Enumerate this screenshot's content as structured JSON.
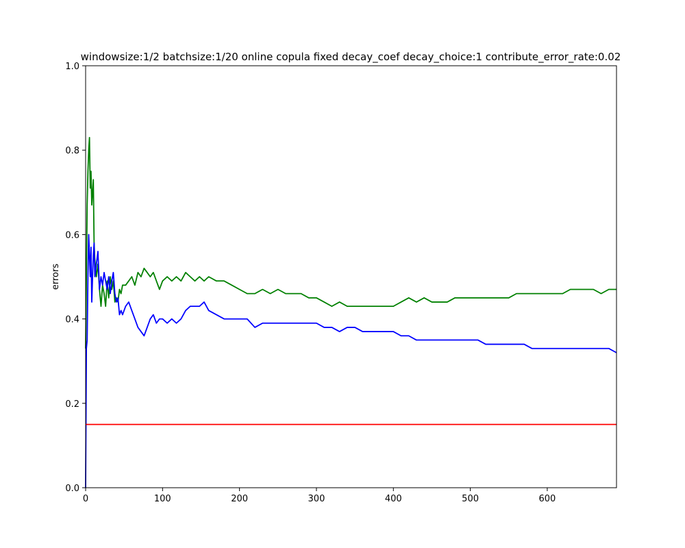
{
  "chart_data": {
    "type": "line",
    "title": "windowsize:1/2  batchsize:1/20 online copula  fixed decay_coef  decay_choice:1  contribute_error_rate:0.02",
    "xlabel": "",
    "ylabel": "errors",
    "xlim": [
      0,
      690
    ],
    "ylim": [
      0.0,
      1.0
    ],
    "x_ticks": [
      0,
      100,
      200,
      300,
      400,
      500,
      600
    ],
    "y_ticks": [
      0.0,
      0.2,
      0.4,
      0.6,
      0.8,
      1.0
    ],
    "x_tick_labels": [
      "0",
      "100",
      "200",
      "300",
      "400",
      "500",
      "600"
    ],
    "y_tick_labels": [
      "0.0",
      "0.2",
      "0.4",
      "0.6",
      "0.8",
      "1.0"
    ],
    "grid": false,
    "series": [
      {
        "color": "#008000",
        "points": [
          [
            0,
            0.33
          ],
          [
            1,
            0.5
          ],
          [
            2,
            0.67
          ],
          [
            3,
            0.75
          ],
          [
            4,
            0.8
          ],
          [
            5,
            0.83
          ],
          [
            6,
            0.71
          ],
          [
            7,
            0.75
          ],
          [
            8,
            0.67
          ],
          [
            9,
            0.7
          ],
          [
            10,
            0.73
          ],
          [
            11,
            0.58
          ],
          [
            12,
            0.54
          ],
          [
            14,
            0.5
          ],
          [
            16,
            0.53
          ],
          [
            18,
            0.47
          ],
          [
            20,
            0.43
          ],
          [
            22,
            0.48
          ],
          [
            24,
            0.46
          ],
          [
            26,
            0.43
          ],
          [
            28,
            0.49
          ],
          [
            30,
            0.45
          ],
          [
            32,
            0.5
          ],
          [
            34,
            0.47
          ],
          [
            36,
            0.49
          ],
          [
            38,
            0.44
          ],
          [
            40,
            0.45
          ],
          [
            42,
            0.44
          ],
          [
            44,
            0.47
          ],
          [
            46,
            0.46
          ],
          [
            48,
            0.48
          ],
          [
            52,
            0.48
          ],
          [
            56,
            0.49
          ],
          [
            60,
            0.5
          ],
          [
            64,
            0.48
          ],
          [
            68,
            0.51
          ],
          [
            72,
            0.5
          ],
          [
            76,
            0.52
          ],
          [
            80,
            0.51
          ],
          [
            84,
            0.5
          ],
          [
            88,
            0.51
          ],
          [
            92,
            0.49
          ],
          [
            96,
            0.47
          ],
          [
            100,
            0.49
          ],
          [
            106,
            0.5
          ],
          [
            112,
            0.49
          ],
          [
            118,
            0.5
          ],
          [
            124,
            0.49
          ],
          [
            130,
            0.51
          ],
          [
            136,
            0.5
          ],
          [
            142,
            0.49
          ],
          [
            148,
            0.5
          ],
          [
            154,
            0.49
          ],
          [
            160,
            0.5
          ],
          [
            170,
            0.49
          ],
          [
            180,
            0.49
          ],
          [
            190,
            0.48
          ],
          [
            200,
            0.47
          ],
          [
            210,
            0.46
          ],
          [
            220,
            0.46
          ],
          [
            230,
            0.47
          ],
          [
            240,
            0.46
          ],
          [
            250,
            0.47
          ],
          [
            260,
            0.46
          ],
          [
            270,
            0.46
          ],
          [
            280,
            0.46
          ],
          [
            290,
            0.45
          ],
          [
            300,
            0.45
          ],
          [
            310,
            0.44
          ],
          [
            320,
            0.43
          ],
          [
            330,
            0.44
          ],
          [
            340,
            0.43
          ],
          [
            350,
            0.43
          ],
          [
            360,
            0.43
          ],
          [
            370,
            0.43
          ],
          [
            380,
            0.43
          ],
          [
            390,
            0.43
          ],
          [
            400,
            0.43
          ],
          [
            410,
            0.44
          ],
          [
            420,
            0.45
          ],
          [
            430,
            0.44
          ],
          [
            440,
            0.45
          ],
          [
            450,
            0.44
          ],
          [
            460,
            0.44
          ],
          [
            470,
            0.44
          ],
          [
            480,
            0.45
          ],
          [
            490,
            0.45
          ],
          [
            500,
            0.45
          ],
          [
            510,
            0.45
          ],
          [
            520,
            0.45
          ],
          [
            530,
            0.45
          ],
          [
            540,
            0.45
          ],
          [
            550,
            0.45
          ],
          [
            560,
            0.46
          ],
          [
            570,
            0.46
          ],
          [
            580,
            0.46
          ],
          [
            590,
            0.46
          ],
          [
            600,
            0.46
          ],
          [
            610,
            0.46
          ],
          [
            620,
            0.46
          ],
          [
            630,
            0.47
          ],
          [
            640,
            0.47
          ],
          [
            650,
            0.47
          ],
          [
            660,
            0.47
          ],
          [
            670,
            0.46
          ],
          [
            680,
            0.47
          ],
          [
            690,
            0.47
          ]
        ]
      },
      {
        "color": "#0000ff",
        "points": [
          [
            0,
            0.0
          ],
          [
            1,
            0.33
          ],
          [
            2,
            0.35
          ],
          [
            3,
            0.5
          ],
          [
            4,
            0.6
          ],
          [
            5,
            0.55
          ],
          [
            6,
            0.5
          ],
          [
            7,
            0.57
          ],
          [
            8,
            0.44
          ],
          [
            9,
            0.5
          ],
          [
            10,
            0.55
          ],
          [
            11,
            0.58
          ],
          [
            12,
            0.5
          ],
          [
            14,
            0.53
          ],
          [
            16,
            0.56
          ],
          [
            18,
            0.47
          ],
          [
            20,
            0.5
          ],
          [
            22,
            0.48
          ],
          [
            24,
            0.51
          ],
          [
            26,
            0.49
          ],
          [
            28,
            0.47
          ],
          [
            30,
            0.5
          ],
          [
            32,
            0.46
          ],
          [
            34,
            0.49
          ],
          [
            36,
            0.51
          ],
          [
            38,
            0.46
          ],
          [
            40,
            0.44
          ],
          [
            42,
            0.45
          ],
          [
            44,
            0.41
          ],
          [
            46,
            0.42
          ],
          [
            48,
            0.41
          ],
          [
            52,
            0.43
          ],
          [
            56,
            0.44
          ],
          [
            60,
            0.42
          ],
          [
            64,
            0.4
          ],
          [
            68,
            0.38
          ],
          [
            72,
            0.37
          ],
          [
            76,
            0.36
          ],
          [
            80,
            0.38
          ],
          [
            84,
            0.4
          ],
          [
            88,
            0.41
          ],
          [
            92,
            0.39
          ],
          [
            96,
            0.4
          ],
          [
            100,
            0.4
          ],
          [
            106,
            0.39
          ],
          [
            112,
            0.4
          ],
          [
            118,
            0.39
          ],
          [
            124,
            0.4
          ],
          [
            130,
            0.42
          ],
          [
            136,
            0.43
          ],
          [
            142,
            0.43
          ],
          [
            148,
            0.43
          ],
          [
            154,
            0.44
          ],
          [
            160,
            0.42
          ],
          [
            170,
            0.41
          ],
          [
            180,
            0.4
          ],
          [
            190,
            0.4
          ],
          [
            200,
            0.4
          ],
          [
            210,
            0.4
          ],
          [
            220,
            0.38
          ],
          [
            230,
            0.39
          ],
          [
            240,
            0.39
          ],
          [
            250,
            0.39
          ],
          [
            260,
            0.39
          ],
          [
            270,
            0.39
          ],
          [
            280,
            0.39
          ],
          [
            290,
            0.39
          ],
          [
            300,
            0.39
          ],
          [
            310,
            0.38
          ],
          [
            320,
            0.38
          ],
          [
            330,
            0.37
          ],
          [
            340,
            0.38
          ],
          [
            350,
            0.38
          ],
          [
            360,
            0.37
          ],
          [
            370,
            0.37
          ],
          [
            380,
            0.37
          ],
          [
            390,
            0.37
          ],
          [
            400,
            0.37
          ],
          [
            410,
            0.36
          ],
          [
            420,
            0.36
          ],
          [
            430,
            0.35
          ],
          [
            440,
            0.35
          ],
          [
            450,
            0.35
          ],
          [
            460,
            0.35
          ],
          [
            470,
            0.35
          ],
          [
            480,
            0.35
          ],
          [
            490,
            0.35
          ],
          [
            500,
            0.35
          ],
          [
            510,
            0.35
          ],
          [
            520,
            0.34
          ],
          [
            530,
            0.34
          ],
          [
            540,
            0.34
          ],
          [
            550,
            0.34
          ],
          [
            560,
            0.34
          ],
          [
            570,
            0.34
          ],
          [
            580,
            0.33
          ],
          [
            590,
            0.33
          ],
          [
            600,
            0.33
          ],
          [
            610,
            0.33
          ],
          [
            620,
            0.33
          ],
          [
            630,
            0.33
          ],
          [
            640,
            0.33
          ],
          [
            650,
            0.33
          ],
          [
            660,
            0.33
          ],
          [
            670,
            0.33
          ],
          [
            680,
            0.33
          ],
          [
            690,
            0.32
          ]
        ]
      },
      {
        "color": "#ff0000",
        "points": [
          [
            0,
            0.15
          ],
          [
            690,
            0.15
          ]
        ]
      }
    ]
  }
}
